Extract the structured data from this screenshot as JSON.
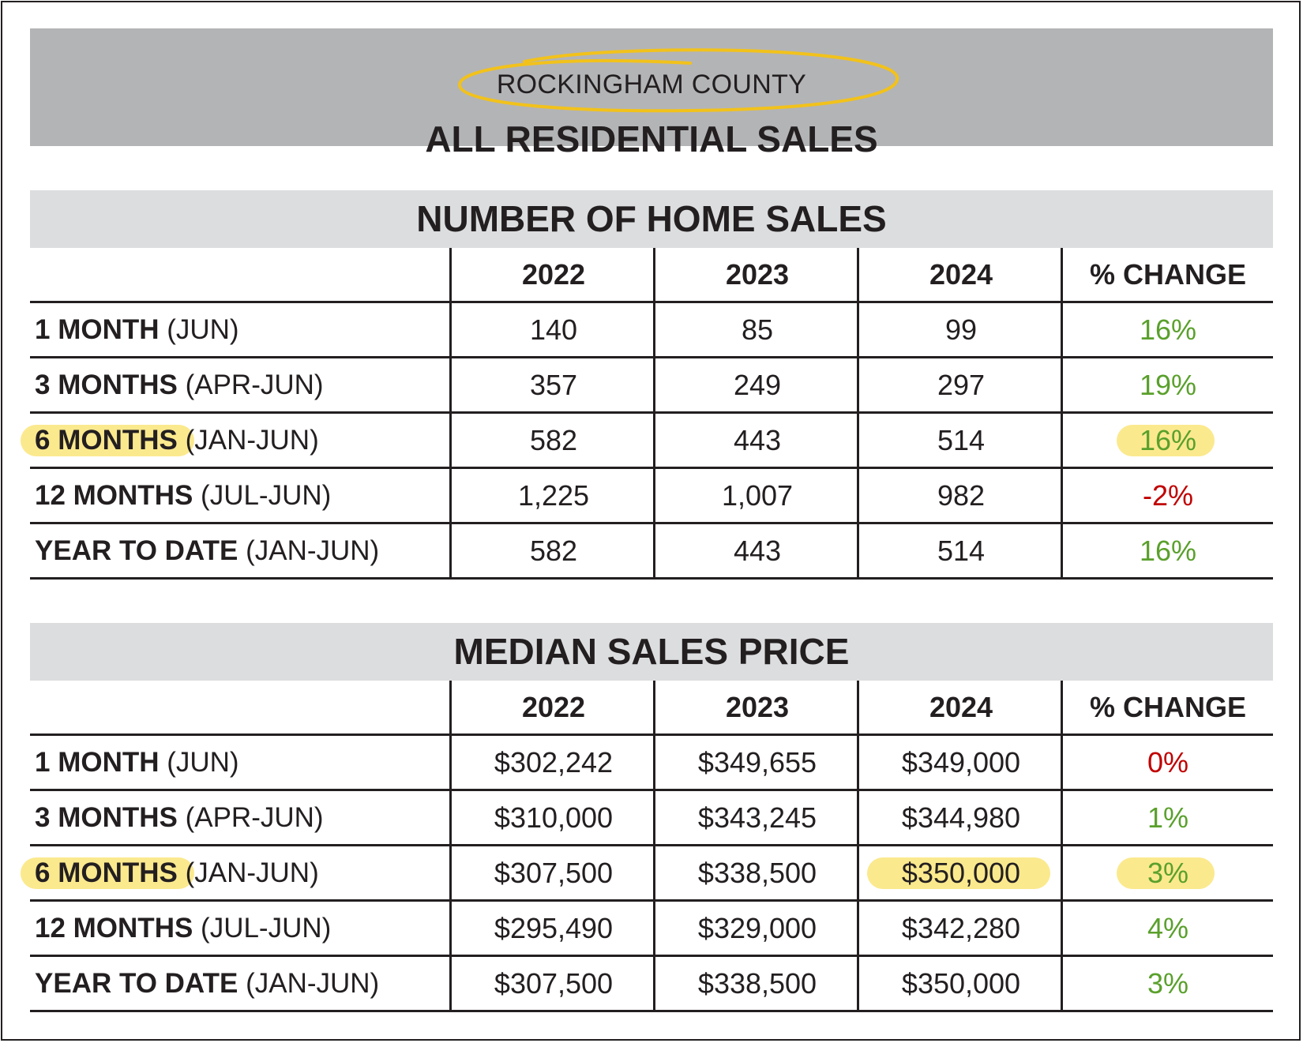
{
  "header": {
    "county": "ROCKINGHAM COUNTY",
    "title": "ALL RESIDENTIAL SALES"
  },
  "colors": {
    "positive": "#5aa02c",
    "negative": "#c00000",
    "highlight": "#fbe98e",
    "circle": "#f2c21b"
  },
  "sales": {
    "title": "NUMBER OF HOME SALES",
    "columns": [
      "2022",
      "2023",
      "2024",
      "% CHANGE"
    ],
    "rows": [
      {
        "label_bold": "1 MONTH",
        "label_rest": " (JUN)",
        "v2022": "140",
        "v2023": "85",
        "v2024": "99",
        "change": "16%"
      },
      {
        "label_bold": "3 MONTHS",
        "label_rest": " (APR-JUN)",
        "v2022": "357",
        "v2023": "249",
        "v2024": "297",
        "change": "19%"
      },
      {
        "label_bold": "6 MONTHS",
        "label_rest": " (JAN-JUN)",
        "v2022": "582",
        "v2023": "443",
        "v2024": "514",
        "change": "16%"
      },
      {
        "label_bold": "12 MONTHS",
        "label_rest": " (JUL-JUN)",
        "v2022": "1,225",
        "v2023": "1,007",
        "v2024": "982",
        "change": "-2%"
      },
      {
        "label_bold": "YEAR TO DATE",
        "label_rest": " (JAN-JUN)",
        "v2022": "582",
        "v2023": "443",
        "v2024": "514",
        "change": "16%"
      }
    ]
  },
  "price": {
    "title": "MEDIAN SALES PRICE",
    "columns": [
      "2022",
      "2023",
      "2024",
      "% CHANGE"
    ],
    "rows": [
      {
        "label_bold": "1 MONTH",
        "label_rest": " (JUN)",
        "v2022": "$302,242",
        "v2023": "$349,655",
        "v2024": "$349,000",
        "change": "0%"
      },
      {
        "label_bold": "3 MONTHS",
        "label_rest": " (APR-JUN)",
        "v2022": "$310,000",
        "v2023": "$343,245",
        "v2024": "$344,980",
        "change": "1%"
      },
      {
        "label_bold": "6 MONTHS",
        "label_rest": " (JAN-JUN)",
        "v2022": "$307,500",
        "v2023": "$338,500",
        "v2024": "$350,000",
        "change": "3%"
      },
      {
        "label_bold": "12 MONTHS",
        "label_rest": " (JUL-JUN)",
        "v2022": "$295,490",
        "v2023": "$329,000",
        "v2024": "$342,280",
        "change": "4%"
      },
      {
        "label_bold": "YEAR TO DATE",
        "label_rest": " (JAN-JUN)",
        "v2022": "$307,500",
        "v2023": "$338,500",
        "v2024": "$350,000",
        "change": "3%"
      }
    ]
  }
}
